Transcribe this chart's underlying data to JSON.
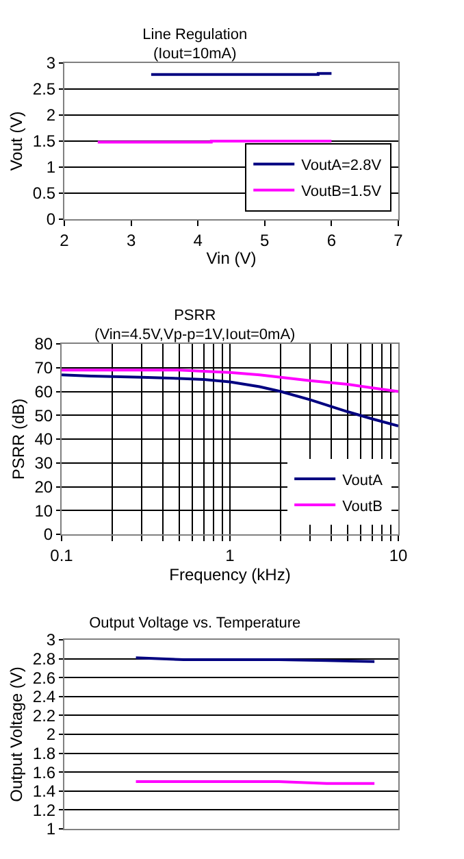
{
  "chart_data": [
    {
      "type": "line",
      "title": "Line Regulation",
      "subtitle": "(Iout=10mA)",
      "xlabel": "Vin (V)",
      "ylabel": "Vout (V)",
      "xlim": [
        2,
        7
      ],
      "xticks": [
        2,
        3,
        4,
        5,
        6,
        7
      ],
      "ylim": [
        0,
        3
      ],
      "yticks": [
        0,
        0.5,
        1,
        1.5,
        2,
        2.5,
        3
      ],
      "grid": "y",
      "legend": "bottom right",
      "marker": "none",
      "line_style": "solid",
      "series": [
        {
          "name": "VoutA=2.8V",
          "color": "#000080",
          "x": [
            3.3,
            5.8,
            5.8,
            6
          ],
          "values": [
            2.78,
            2.78,
            2.8,
            2.8
          ]
        },
        {
          "name": "VoutB=1.5V",
          "color": "#ff00ff",
          "x": [
            2.5,
            4.2,
            4.2,
            6
          ],
          "values": [
            1.48,
            1.48,
            1.5,
            1.5
          ]
        }
      ]
    },
    {
      "type": "line",
      "title": "PSRR",
      "subtitle": "(Vin=4.5V,Vp-p=1V,Iout=0mA)",
      "xlabel": "Frequency (kHz)",
      "ylabel": "PSRR (dB)",
      "log": "x",
      "xlim": [
        0.1,
        10
      ],
      "xticks": [
        0.1,
        {
          "value": 0.2,
          "label": null
        },
        {
          "value": 0.3,
          "label": null
        },
        {
          "value": 0.4,
          "label": null
        },
        {
          "value": 0.5,
          "label": null
        },
        {
          "value": 0.6,
          "label": null
        },
        {
          "value": 0.7,
          "label": null
        },
        {
          "value": 0.8,
          "label": null
        },
        {
          "value": 0.9,
          "label": null
        },
        1,
        {
          "value": 2,
          "label": null
        },
        {
          "value": 3,
          "label": null
        },
        {
          "value": 4,
          "label": null
        },
        {
          "value": 5,
          "label": null
        },
        {
          "value": 6,
          "label": null
        },
        {
          "value": 7,
          "label": null
        },
        {
          "value": 8,
          "label": null
        },
        {
          "value": 9,
          "label": null
        },
        10
      ],
      "ylim": [
        0,
        80
      ],
      "yticks": [
        0,
        10,
        20,
        30,
        40,
        50,
        60,
        70,
        80
      ],
      "grid": true,
      "legend": "bottom right",
      "marker": "none",
      "line_style": "solid",
      "series": [
        {
          "name": "VoutA",
          "color": "#000080",
          "x": [
            0.1,
            0.15,
            0.3,
            0.5,
            0.7,
            1,
            1.5,
            2,
            3,
            5,
            7,
            10
          ],
          "values": [
            67,
            66.5,
            66,
            65.5,
            65,
            64,
            62,
            60,
            56.5,
            51.5,
            48.5,
            45.5
          ]
        },
        {
          "name": "VoutB",
          "color": "#ff00ff",
          "x": [
            0.1,
            0.5,
            0.7,
            1,
            1.5,
            2,
            3,
            5,
            7,
            10
          ],
          "values": [
            69,
            69,
            68.5,
            68,
            67,
            66,
            64.5,
            63,
            61.5,
            60
          ]
        }
      ]
    },
    {
      "type": "line",
      "title": "Output Voltage vs. Temperature",
      "ylabel": "Output Voltage (V)",
      "categories": [
        null,
        null,
        null,
        null,
        null,
        null,
        null
      ],
      "ylim": [
        1,
        3
      ],
      "yticks": [
        1,
        1.2,
        1.4,
        1.6,
        1.8,
        2,
        2.2,
        2.4,
        2.6,
        2.8,
        3
      ],
      "grid": "y",
      "tick_labels": "y",
      "marker": "none",
      "line_style": "solid",
      "series": [
        {
          "color": "#000080",
          "values": [
            null,
            2.81,
            2.79,
            2.79,
            2.79,
            2.78,
            2.77
          ]
        },
        {
          "color": "#ff00ff",
          "values": [
            null,
            1.5,
            1.5,
            1.5,
            1.5,
            1.48,
            1.48
          ]
        }
      ]
    }
  ]
}
